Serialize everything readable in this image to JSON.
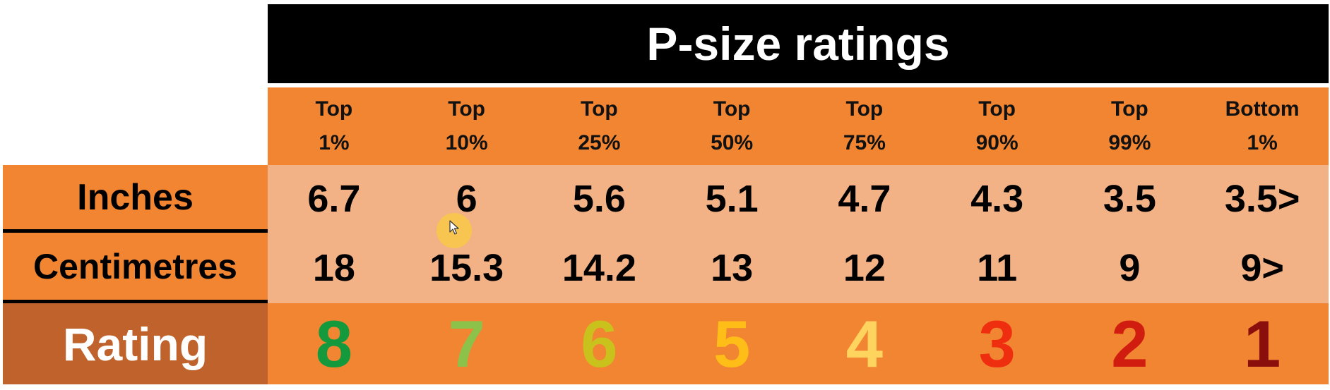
{
  "title": "P-size ratings",
  "columns": [
    {
      "top": "Top",
      "bottom": "1%"
    },
    {
      "top": "Top",
      "bottom": "10%"
    },
    {
      "top": "Top",
      "bottom": "25%"
    },
    {
      "top": "Top",
      "bottom": "50%"
    },
    {
      "top": "Top",
      "bottom": "75%"
    },
    {
      "top": "Top",
      "bottom": "90%"
    },
    {
      "top": "Top",
      "bottom": "99%"
    },
    {
      "top": "Bottom",
      "bottom": "1%"
    }
  ],
  "rows": {
    "inches": {
      "label": "Inches",
      "values": [
        "6.7",
        "6",
        "5.6",
        "5.1",
        "4.7",
        "4.3",
        "3.5",
        "3.5>"
      ]
    },
    "centimetres": {
      "label": "Centimetres",
      "values": [
        "18",
        "15.3",
        "14.2",
        "13",
        "12",
        "11",
        "9",
        "9>"
      ]
    },
    "rating": {
      "label": "Rating",
      "values": [
        "8",
        "7",
        "6",
        "5",
        "4",
        "3",
        "2",
        "1"
      ],
      "colors": [
        "#149a3c",
        "#8cc24a",
        "#c9c21c",
        "#ffbd17",
        "#ffd45e",
        "#ef2d0f",
        "#d01d10",
        "#8a0f0c"
      ]
    }
  },
  "colors": {
    "title_bg": "#000000",
    "header_bg": "#f28532",
    "data_bg": "#f3b286",
    "rating_row_bg": "#f28532",
    "rating_label_bg": "#c0622b"
  },
  "icons": {
    "cursor": "mouse-pointer-icon"
  }
}
